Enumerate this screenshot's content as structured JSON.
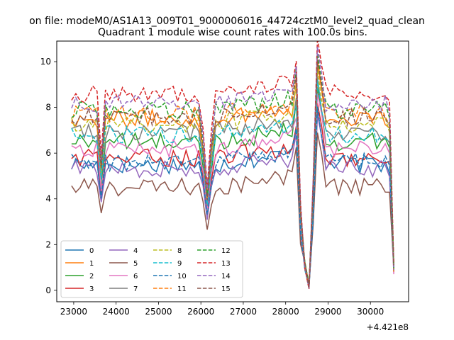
{
  "suptitle": "on file: modeM0/AS1A13_009T01_9000006016_44724cztM0_level2_quad_clean",
  "chart_data": {
    "type": "line",
    "title": "Quadrant 1 module wise count rates with 100.0s bins.",
    "xlabel": "",
    "ylabel": "",
    "x_offset_label": "+4.421e8",
    "x_offset": 442100000,
    "xlim": [
      22600,
      30900
    ],
    "ylim": [
      -0.5,
      10.9
    ],
    "xticks": [
      23000,
      24000,
      25000,
      26000,
      27000,
      28000,
      29000,
      30000
    ],
    "xtick_labels": [
      "23000",
      "24000",
      "25000",
      "26000",
      "27000",
      "28000",
      "29000",
      "30000"
    ],
    "yticks": [
      0,
      2,
      4,
      6,
      8,
      10
    ],
    "ytick_labels": [
      "0",
      "2",
      "4",
      "6",
      "8",
      "10"
    ],
    "x_start": 22950,
    "x_step": 100,
    "x_end": 30550,
    "legend": {
      "location": "lower-left",
      "columns": 4
    },
    "series": [
      {
        "name": "0",
        "color": "#1f77b4",
        "style": "solid",
        "base": 5.5,
        "dip": 3.8
      },
      {
        "name": "1",
        "color": "#ff7f0e",
        "style": "solid",
        "base": 7.5,
        "dip": 4.8
      },
      {
        "name": "2",
        "color": "#2ca02c",
        "style": "solid",
        "base": 6.5,
        "dip": 4.2
      },
      {
        "name": "3",
        "color": "#d62728",
        "style": "solid",
        "base": 5.8,
        "dip": 3.9
      },
      {
        "name": "4",
        "color": "#9467bd",
        "style": "solid",
        "base": 5.3,
        "dip": 3.7
      },
      {
        "name": "5",
        "color": "#8c564b",
        "style": "solid",
        "base": 4.5,
        "dip": 3.1
      },
      {
        "name": "6",
        "color": "#e377c2",
        "style": "solid",
        "base": 6.2,
        "dip": 4.1
      },
      {
        "name": "7",
        "color": "#7f7f7f",
        "style": "solid",
        "base": 6.9,
        "dip": 4.5
      },
      {
        "name": "8",
        "color": "#bcbd22",
        "style": "dashed",
        "base": 7.3,
        "dip": 4.7
      },
      {
        "name": "9",
        "color": "#17becf",
        "style": "dashed",
        "base": 6.8,
        "dip": 4.4
      },
      {
        "name": "10",
        "color": "#1f77b4",
        "style": "dashed",
        "base": 5.6,
        "dip": 3.8
      },
      {
        "name": "11",
        "color": "#ff7f0e",
        "style": "dashed",
        "base": 7.7,
        "dip": 4.9
      },
      {
        "name": "12",
        "color": "#2ca02c",
        "style": "dashed",
        "base": 7.9,
        "dip": 5.0
      },
      {
        "name": "13",
        "color": "#d62728",
        "style": "dashed",
        "base": 8.6,
        "dip": 5.3
      },
      {
        "name": "14",
        "color": "#9467bd",
        "style": "dashed",
        "base": 8.2,
        "dip": 5.1
      },
      {
        "name": "15",
        "color": "#8c564b",
        "style": "dashed",
        "base": 7.6,
        "dip": 4.8
      }
    ]
  }
}
